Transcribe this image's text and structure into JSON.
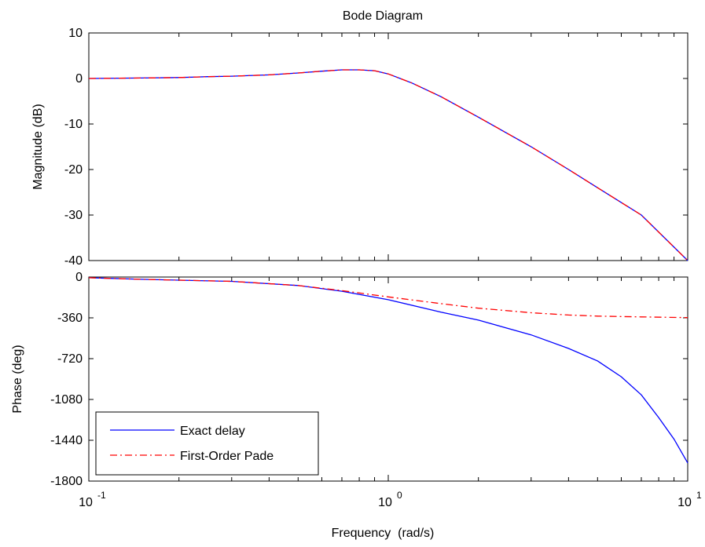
{
  "chart_data": [
    {
      "type": "line",
      "title": "Bode Diagram",
      "ylabel": "Magnitude (dB)",
      "xlabel": "",
      "xscale": "log",
      "xlim": [
        0.1,
        10
      ],
      "ylim": [
        -40,
        10
      ],
      "yticks": [
        "10",
        "0",
        "-10",
        "-20",
        "-30",
        "-40"
      ],
      "grid": false,
      "series": [
        {
          "name": "Exact delay",
          "color": "#0000ff",
          "style": "solid",
          "x": [
            0.1,
            0.15,
            0.2,
            0.25,
            0.3,
            0.4,
            0.5,
            0.6,
            0.7,
            0.8,
            0.9,
            1.0,
            1.2,
            1.5,
            2,
            3,
            4,
            5,
            7,
            10
          ],
          "y": [
            0,
            0.1,
            0.2,
            0.4,
            0.5,
            0.8,
            1.2,
            1.6,
            1.9,
            1.9,
            1.7,
            1.0,
            -1.0,
            -4.0,
            -8.5,
            -15,
            -20,
            -24,
            -30,
            -40
          ]
        },
        {
          "name": "First-Order Pade",
          "color": "#ff0000",
          "style": "dashdot",
          "x": [
            0.1,
            0.15,
            0.2,
            0.25,
            0.3,
            0.4,
            0.5,
            0.6,
            0.7,
            0.8,
            0.9,
            1.0,
            1.2,
            1.5,
            2,
            3,
            4,
            5,
            7,
            10
          ],
          "y": [
            0,
            0.1,
            0.2,
            0.4,
            0.5,
            0.8,
            1.2,
            1.6,
            1.9,
            1.9,
            1.7,
            1.0,
            -1.0,
            -4.0,
            -8.5,
            -15,
            -20,
            -24,
            -30,
            -40
          ]
        }
      ]
    },
    {
      "type": "line",
      "title": "",
      "ylabel": "Phase (deg)",
      "xlabel": "Frequency  (rad/s)",
      "xscale": "log",
      "xlim": [
        0.1,
        10
      ],
      "ylim": [
        -1800,
        0
      ],
      "yticks": [
        "0",
        "-360",
        "-720",
        "-1080",
        "-1440",
        "-1800"
      ],
      "xticks": [
        {
          "base": "10",
          "exp": "-1"
        },
        {
          "base": "10",
          "exp": "0"
        },
        {
          "base": "10",
          "exp": "1"
        }
      ],
      "grid": false,
      "legend": "bottom-left",
      "series": [
        {
          "name": "Exact delay",
          "color": "#0000ff",
          "style": "solid",
          "x": [
            0.1,
            0.15,
            0.2,
            0.3,
            0.5,
            0.7,
            1.0,
            1.5,
            2,
            3,
            4,
            5,
            6,
            7,
            8,
            9,
            10
          ],
          "y": [
            -6,
            -20,
            -28,
            -38,
            -75,
            -125,
            -200,
            -310,
            -380,
            -510,
            -630,
            -740,
            -880,
            -1040,
            -1240,
            -1430,
            -1640
          ]
        },
        {
          "name": "First-Order Pade",
          "color": "#ff0000",
          "style": "dashdot",
          "x": [
            0.1,
            0.15,
            0.2,
            0.3,
            0.5,
            0.7,
            1.0,
            1.5,
            2,
            3,
            4,
            5,
            7,
            10
          ],
          "y": [
            -6,
            -20,
            -28,
            -38,
            -75,
            -120,
            -175,
            -235,
            -275,
            -315,
            -335,
            -345,
            -352,
            -358
          ]
        }
      ]
    }
  ]
}
